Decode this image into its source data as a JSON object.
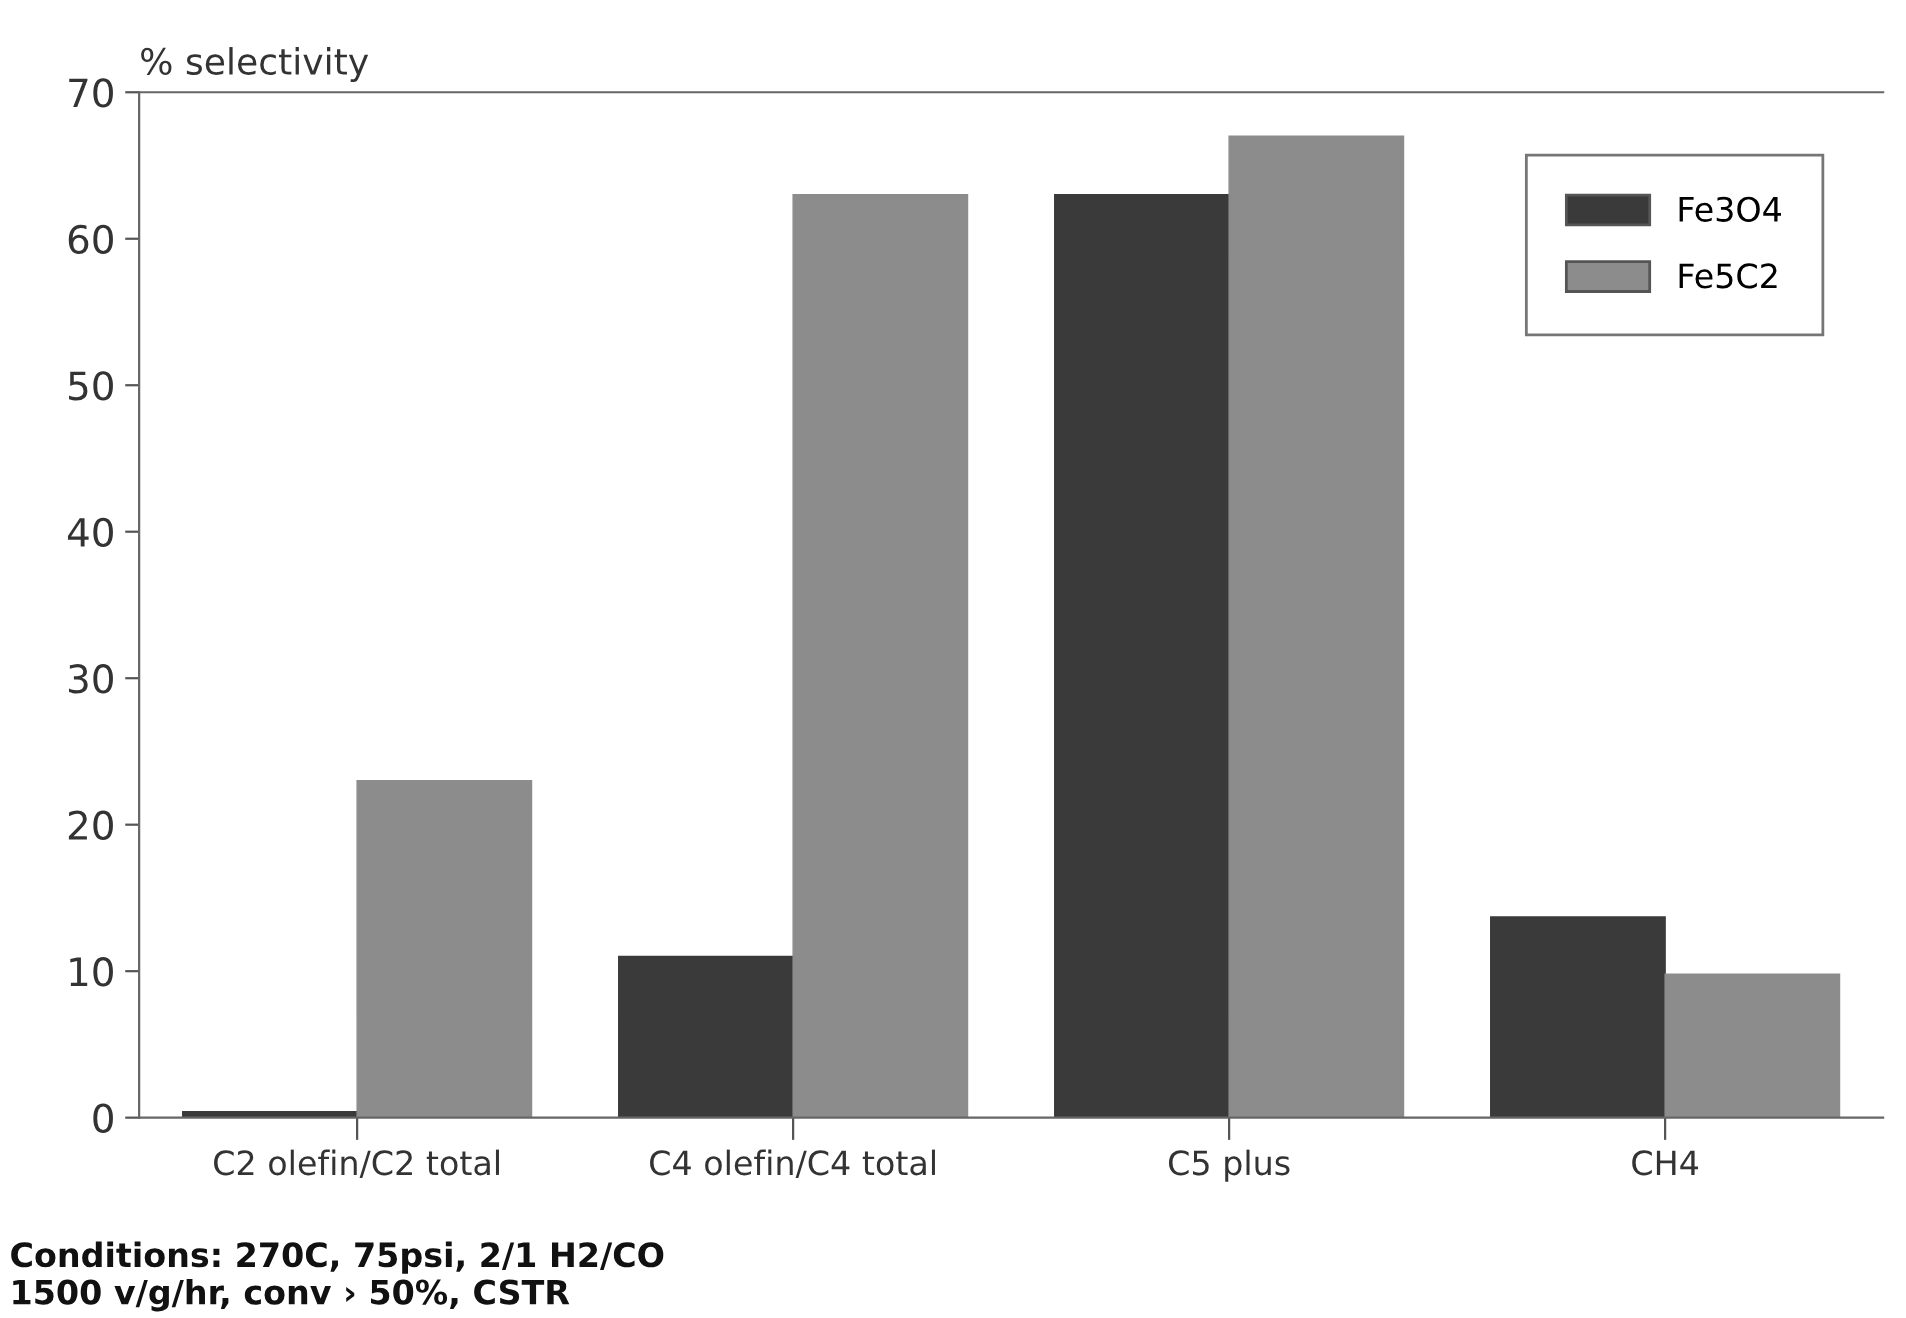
{
  "chart_data": {
    "type": "bar",
    "ylabel": "% selectivity",
    "categories": [
      "C2 olefin/C2 total",
      "C4 olefin/C4 total",
      "C5 plus",
      "CH4"
    ],
    "series": [
      {
        "name": "Fe3O4",
        "color": "#3a3a3a",
        "values": [
          0.4,
          11,
          63,
          13.7
        ]
      },
      {
        "name": "Fe5C2",
        "color": "#8c8c8c",
        "values": [
          23,
          63,
          67,
          9.8
        ]
      }
    ],
    "ylim": [
      0,
      70
    ],
    "yticks": [
      0,
      10,
      20,
      30,
      40,
      50,
      60,
      70
    ],
    "legend": "top right",
    "annotations": [
      "Conditions: 270C, 75psi, 2/1 H2/CO\n1500 v/g/hr, conv › 50%, CSTR"
    ]
  }
}
